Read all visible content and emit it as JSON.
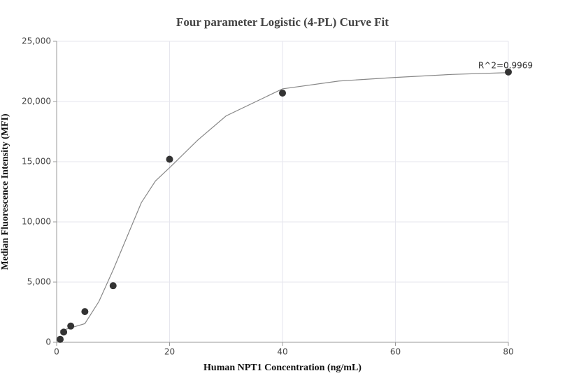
{
  "chart_data": {
    "type": "scatter",
    "title": "Four parameter Logistic (4-PL) Curve Fit",
    "x_label": "Human NPT1 Concentration (ng/mL)",
    "y_label": "Median Fluorescence Intensity (MFI)",
    "annotation": "R^2=0.9969",
    "x": [
      0.625,
      1.25,
      2.5,
      5,
      10,
      20,
      40,
      80
    ],
    "values": [
      250,
      850,
      1350,
      2550,
      4700,
      15200,
      20700,
      22450
    ],
    "color": "#333333",
    "fit": {
      "x": [
        0.625,
        2.5,
        5,
        7.5,
        10,
        12.5,
        15,
        17.5,
        20,
        25,
        30,
        40,
        50,
        60,
        70,
        80
      ],
      "values": [
        950,
        1200,
        1550,
        3400,
        6000,
        8800,
        11600,
        13400,
        14500,
        16800,
        18800,
        21050,
        21700,
        22000,
        22250,
        22400
      ],
      "color": "#888888"
    },
    "xlim": [
      0,
      80
    ],
    "xticks": [
      0,
      20,
      40,
      60,
      80
    ],
    "ylim": [
      0,
      25000
    ],
    "yticks": [
      0,
      {
        "value": 5000,
        "label": "5,000"
      },
      {
        "value": 10000,
        "label": "10,000"
      },
      {
        "value": 15000,
        "label": "15,000"
      },
      {
        "value": 20000,
        "label": "20,000"
      },
      {
        "value": 25000,
        "label": "25,000"
      }
    ],
    "grid": true
  }
}
